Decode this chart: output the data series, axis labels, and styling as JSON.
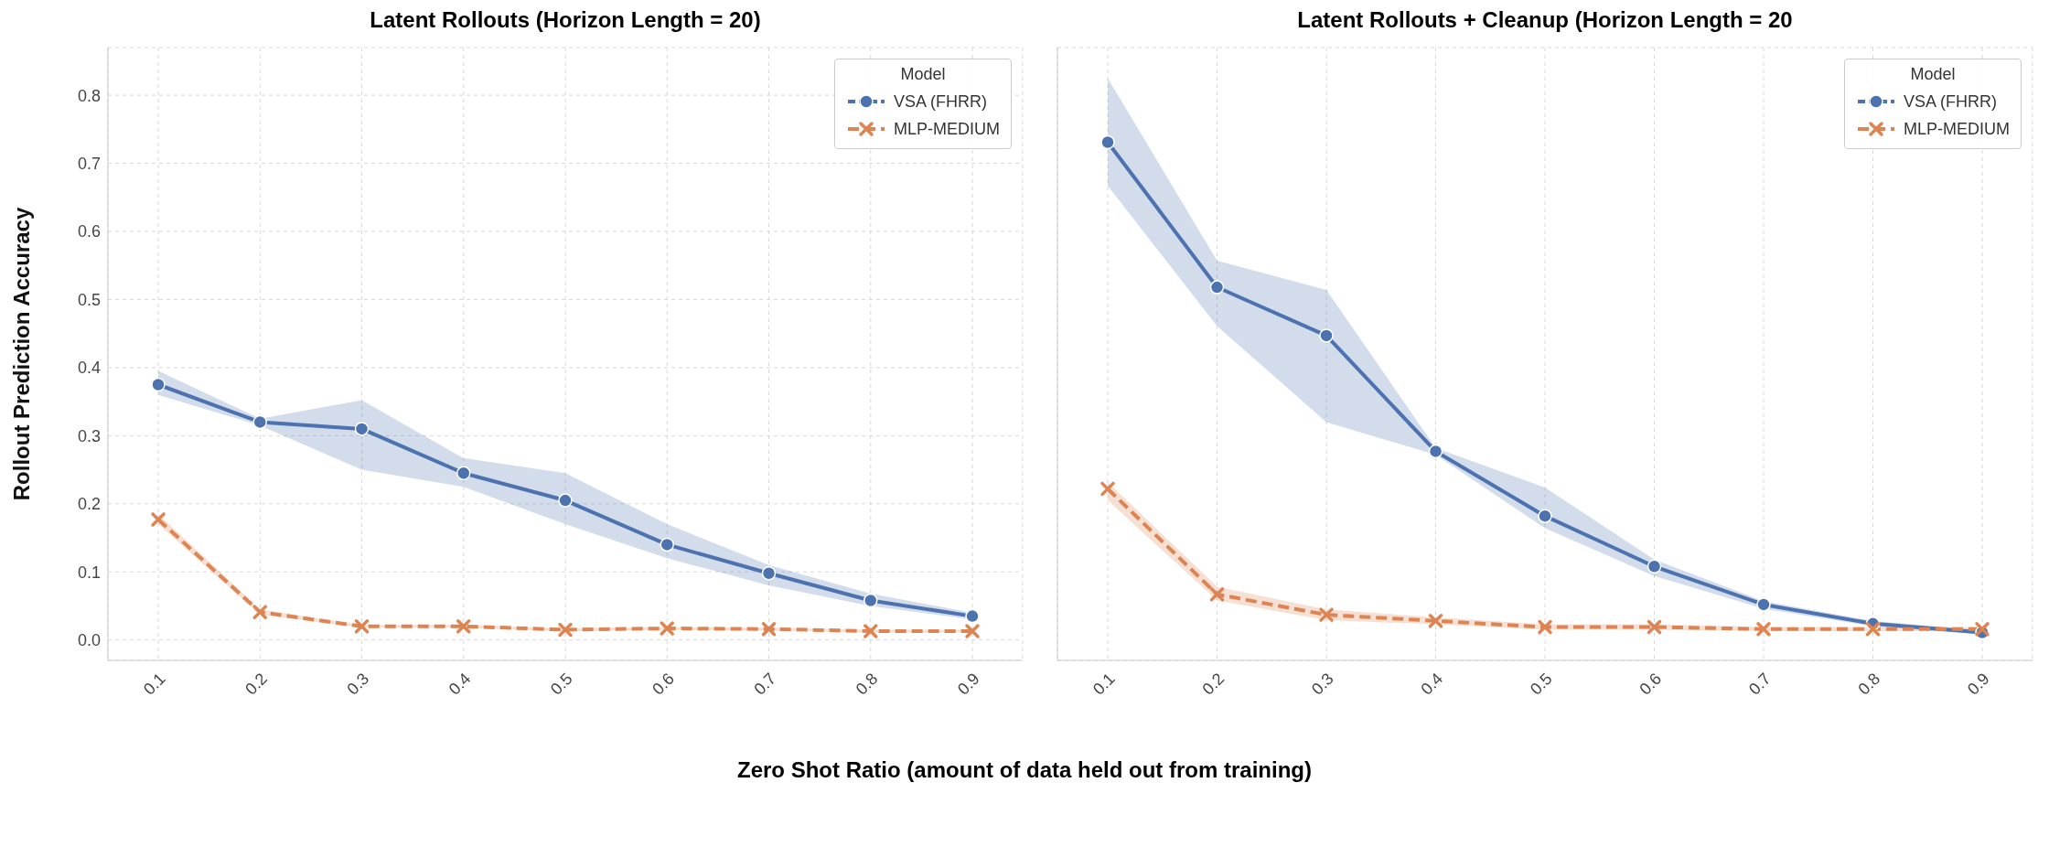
{
  "chart_data": [
    {
      "type": "line",
      "title": "Latent Rollouts (Horizon Length = 20)",
      "xlabel": "Zero Shot Ratio (amount of data held out from training)",
      "ylabel": "Rollout Prediction Accuracy",
      "legend_title": "Model",
      "legend": "top right",
      "grid": true,
      "categories": [
        "0.1",
        "0.2",
        "0.3",
        "0.4",
        "0.5",
        "0.6",
        "0.7",
        "0.8",
        "0.9"
      ],
      "ylim": [
        -0.03,
        0.87
      ],
      "yticks": [
        {
          "value": 0,
          "label": "0.0"
        },
        0.1,
        0.2,
        0.3,
        0.4,
        0.5,
        0.6,
        0.7,
        0.8
      ],
      "series": [
        {
          "name": "VSA (FHRR)",
          "color": "#4c72b0",
          "marker": "circle",
          "line_style": "solid",
          "values": [
            0.375,
            0.32,
            0.31,
            0.245,
            0.205,
            0.14,
            0.098,
            0.058,
            0.035
          ],
          "lower": [
            0.36,
            0.315,
            0.25,
            0.225,
            0.17,
            0.12,
            0.08,
            0.05,
            0.03
          ],
          "upper": [
            0.395,
            0.325,
            0.352,
            0.267,
            0.245,
            0.17,
            0.11,
            0.068,
            0.04
          ]
        },
        {
          "name": "MLP-MEDIUM",
          "color": "#dd8452",
          "marker": "cross",
          "line_style": "dashed",
          "values": [
            0.177,
            0.041,
            0.02,
            0.02,
            0.015,
            0.017,
            0.016,
            0.013,
            0.013
          ],
          "lower": [
            0.17,
            0.037,
            0.018,
            0.018,
            0.013,
            0.015,
            0.014,
            0.011,
            0.011
          ],
          "upper": [
            0.185,
            0.045,
            0.022,
            0.022,
            0.017,
            0.019,
            0.018,
            0.015,
            0.015
          ]
        }
      ]
    },
    {
      "type": "line",
      "title": "Latent Rollouts + Cleanup (Horizon Length = 20",
      "legend_title": "Model",
      "legend": "top right",
      "grid": true,
      "tick_labels": "x",
      "categories": [
        "0.1",
        "0.2",
        "0.3",
        "0.4",
        "0.5",
        "0.6",
        "0.7",
        "0.8",
        "0.9"
      ],
      "ylim": [
        -0.03,
        0.87
      ],
      "yticks": [
        0,
        0.1,
        0.2,
        0.3,
        0.4,
        0.5,
        0.6,
        0.7,
        0.8
      ],
      "series": [
        {
          "name": "VSA (FHRR)",
          "color": "#4c72b0",
          "marker": "circle",
          "line_style": "solid",
          "values": [
            0.731,
            0.518,
            0.447,
            0.277,
            0.182,
            0.108,
            0.052,
            0.024,
            0.011
          ],
          "lower": [
            0.667,
            0.461,
            0.32,
            0.272,
            0.164,
            0.094,
            0.046,
            0.02,
            0.008
          ],
          "upper": [
            0.825,
            0.557,
            0.514,
            0.282,
            0.224,
            0.118,
            0.057,
            0.028,
            0.014
          ]
        },
        {
          "name": "MLP-MEDIUM",
          "color": "#dd8452",
          "marker": "cross",
          "line_style": "dashed",
          "values": [
            0.222,
            0.067,
            0.037,
            0.028,
            0.019,
            0.019,
            0.016,
            0.016,
            0.016
          ],
          "lower": [
            0.205,
            0.058,
            0.029,
            0.023,
            0.015,
            0.015,
            0.013,
            0.013,
            0.013
          ],
          "upper": [
            0.232,
            0.078,
            0.045,
            0.033,
            0.023,
            0.023,
            0.019,
            0.019,
            0.019
          ]
        }
      ]
    }
  ]
}
